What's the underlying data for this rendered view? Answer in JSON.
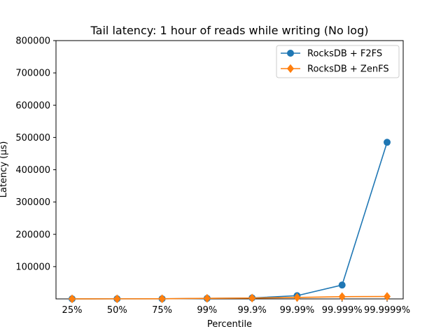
{
  "chart_data": {
    "type": "line",
    "title": "Tail latency: 1 hour of reads while writing (No log)",
    "xlabel": "Percentile",
    "ylabel": "Latency (µs)",
    "categories": [
      "25%",
      "50%",
      "75%",
      "99%",
      "99.9%",
      "99.99%",
      "99.999%",
      "99.9999%"
    ],
    "ylim": [
      0,
      800000
    ],
    "yticks": [
      100000,
      200000,
      300000,
      400000,
      500000,
      600000,
      700000,
      800000
    ],
    "grid": false,
    "legend_position": "top-right",
    "series": [
      {
        "name": "RocksDB + F2FS",
        "color": "#1f77b4",
        "marker": "circle",
        "values": [
          200,
          250,
          400,
          1500,
          3000,
          10000,
          43000,
          485000
        ]
      },
      {
        "name": "RocksDB + ZenFS",
        "color": "#ff7f0e",
        "marker": "diamond",
        "values": [
          200,
          250,
          500,
          1800,
          2500,
          4500,
          7000,
          7500
        ]
      }
    ]
  }
}
